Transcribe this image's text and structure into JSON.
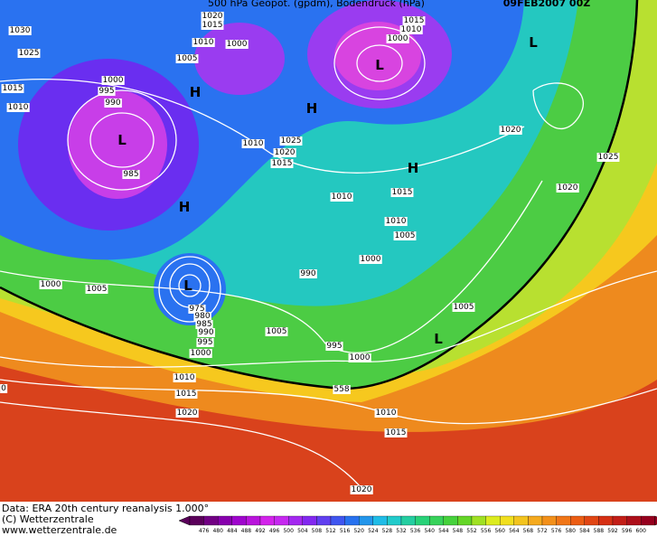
{
  "header": {
    "title": "500 hPa Geopot. (gpdm), Bodendruck (hPa)",
    "date": "09FEB2007 00Z"
  },
  "isobar_labels": [
    1030,
    1025,
    1015,
    1010,
    1000,
    995,
    990,
    985,
    1020,
    1015,
    1010,
    1005,
    1000,
    1015,
    1010,
    1000,
    1010,
    1025,
    1020,
    1015,
    1020,
    1025,
    1020,
    1010,
    1015,
    1010,
    1005,
    1000,
    990,
    1000,
    1005,
    975,
    980,
    985,
    990,
    995,
    1000,
    1005,
    995,
    1000,
    1005,
    1010,
    1015,
    1020,
    1010,
    1015,
    1020,
    558,
    0
  ],
  "pressure_centers": [
    "L",
    "L",
    "L",
    "L",
    "L",
    "H",
    "H",
    "H",
    "H"
  ],
  "footer": [
    "Data: ERA 20th century reanalysis 1.000°",
    "(C) Wetterzentrale",
    "www.wetterzentrale.de"
  ],
  "colorbar": [
    476,
    480,
    484,
    488,
    492,
    496,
    500,
    504,
    508,
    512,
    516,
    520,
    524,
    528,
    532,
    536,
    540,
    544,
    548,
    552,
    556,
    560,
    564,
    568,
    572,
    576,
    580,
    584,
    588,
    592,
    596,
    600
  ]
}
